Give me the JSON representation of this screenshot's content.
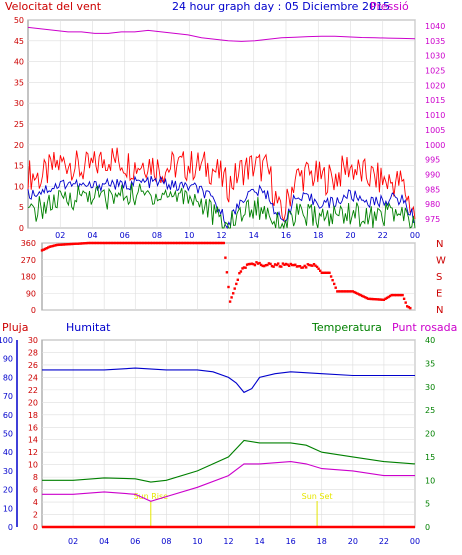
{
  "chart_data": [
    {
      "type": "line",
      "title": "24 hour graph day : 05 Diciembre 2015",
      "left_axis_label": "Velocitat del vent",
      "right_axis_label": "Pressió",
      "x_tick_labels": [
        "02",
        "04",
        "06",
        "08",
        "10",
        "12",
        "14",
        "16",
        "18",
        "20",
        "22",
        "00"
      ],
      "y_left_ticks": [
        0,
        5,
        10,
        15,
        20,
        25,
        30,
        35,
        40,
        45,
        50
      ],
      "y_left_range": [
        0,
        50
      ],
      "y_right_ticks": [
        975,
        980,
        985,
        990,
        995,
        1000,
        1005,
        1010,
        1015,
        1020,
        1025,
        1030,
        1035,
        1040
      ],
      "y_right_range": [
        972,
        1042
      ],
      "grid": true,
      "series": [
        {
          "role": "wind_gust",
          "color": "#ff0000",
          "values": [
            13,
            12,
            15,
            16,
            14,
            15,
            17,
            16,
            15,
            16,
            14,
            15,
            15,
            15,
            14,
            10,
            14,
            15,
            14,
            2,
            12,
            13,
            12,
            12,
            15,
            13,
            12,
            11,
            11,
            3
          ]
        },
        {
          "role": "wind_avg",
          "color": "#0000cc",
          "values": [
            8,
            9,
            10,
            11,
            10,
            10,
            11,
            10,
            11,
            11,
            11,
            10,
            10,
            9,
            6,
            1,
            7,
            9,
            8,
            1,
            7,
            7,
            6,
            6,
            8,
            7,
            6,
            7,
            7,
            2
          ]
        },
        {
          "role": "wind_min",
          "color": "#008000",
          "values": [
            3,
            5,
            6,
            7,
            8,
            8,
            7,
            8,
            8,
            8,
            8,
            8,
            8,
            6,
            3,
            0,
            4,
            5,
            4,
            0,
            3,
            3,
            2,
            3,
            4,
            3,
            2,
            4,
            3,
            0
          ]
        },
        {
          "role": "pressure",
          "color": "#cc00cc",
          "values": [
            1039.5,
            1039,
            1038.5,
            1038,
            1038,
            1037.5,
            1037.5,
            1038,
            1038,
            1038.5,
            1038,
            1037.5,
            1037,
            1036,
            1035.5,
            1035,
            1034.8,
            1035,
            1035.5,
            1036,
            1036.2,
            1036.4,
            1036.5,
            1036.5,
            1036.3,
            1036.1,
            1036,
            1035.9,
            1035.8,
            1035.7
          ]
        }
      ]
    },
    {
      "type": "scatter",
      "right_axis_labels": [
        "N",
        "W",
        "S",
        "E",
        "N"
      ],
      "y_ticks": [
        0,
        90,
        180,
        270,
        360
      ],
      "y_range": [
        0,
        360
      ],
      "x_tick_labels": [
        "02",
        "04",
        "06",
        "08",
        "10",
        "12",
        "14",
        "16",
        "18",
        "20",
        "22",
        "00"
      ],
      "series": [
        {
          "role": "wind_direction",
          "color": "#ff0000",
          "points": [
            [
              0,
              320
            ],
            [
              0.5,
              340
            ],
            [
              1,
              350
            ],
            [
              2,
              355
            ],
            [
              3,
              360
            ],
            [
              4,
              360
            ],
            [
              6,
              360
            ],
            [
              8,
              360
            ],
            [
              10,
              360
            ],
            [
              11.7,
              360
            ],
            [
              12.1,
              45
            ],
            [
              12.3,
              90
            ],
            [
              12.5,
              140
            ],
            [
              12.7,
              200
            ],
            [
              13,
              230
            ],
            [
              13.5,
              250
            ],
            [
              14,
              245
            ],
            [
              15,
              240
            ],
            [
              16,
              240
            ],
            [
              17,
              235
            ],
            [
              17.5,
              240
            ],
            [
              18,
              200
            ],
            [
              18.5,
              200
            ],
            [
              19,
              100
            ],
            [
              20,
              100
            ],
            [
              21,
              60
            ],
            [
              22,
              55
            ],
            [
              22.5,
              80
            ],
            [
              23.2,
              80
            ],
            [
              23.5,
              20
            ],
            [
              23.8,
              5
            ]
          ]
        }
      ]
    },
    {
      "type": "line",
      "legend": [
        "Pluja",
        "Humitat",
        "Temperatura",
        "Punt rosada"
      ],
      "y_axis_pluja": [
        0,
        10,
        20,
        30,
        40,
        50,
        60,
        70,
        80,
        90,
        100
      ],
      "y_axis_humitat": [
        0,
        2,
        4,
        6,
        8,
        10,
        12,
        14,
        16,
        18,
        20,
        22,
        24,
        26,
        28,
        30
      ],
      "y_axis_temp": [
        0,
        5,
        10,
        15,
        20,
        25,
        30,
        35,
        40
      ],
      "x_tick_labels": [
        "02",
        "04",
        "06",
        "08",
        "10",
        "12",
        "14",
        "16",
        "18",
        "20",
        "22",
        "00"
      ],
      "annotations": [
        {
          "label": "Sun Rise",
          "x_hour": 7.0
        },
        {
          "label": "Sun Set",
          "x_hour": 17.7
        }
      ],
      "series": [
        {
          "name": "Pluja",
          "color": "#ff0000",
          "scale": "pluja",
          "points": [
            [
              0,
              0
            ],
            [
              24,
              0
            ]
          ]
        },
        {
          "name": "Humitat",
          "color": "#0000cc",
          "scale": "pluja",
          "points": [
            [
              0,
              84
            ],
            [
              2,
              84
            ],
            [
              4,
              84
            ],
            [
              6,
              85
            ],
            [
              8,
              84
            ],
            [
              10,
              84
            ],
            [
              11,
              83
            ],
            [
              12,
              80
            ],
            [
              12.5,
              77
            ],
            [
              13,
              72
            ],
            [
              13.5,
              74
            ],
            [
              14,
              80
            ],
            [
              15,
              82
            ],
            [
              16,
              83
            ],
            [
              18,
              82
            ],
            [
              20,
              81
            ],
            [
              22,
              81
            ],
            [
              24,
              81
            ]
          ]
        },
        {
          "name": "Temperatura",
          "color": "#008000",
          "scale": "temp",
          "points": [
            [
              0,
              10
            ],
            [
              2,
              10
            ],
            [
              4,
              10.5
            ],
            [
              6,
              10.3
            ],
            [
              7,
              9.6
            ],
            [
              8,
              10
            ],
            [
              10,
              12
            ],
            [
              12,
              15
            ],
            [
              13,
              18.5
            ],
            [
              14,
              18
            ],
            [
              15,
              18
            ],
            [
              16,
              18
            ],
            [
              17,
              17.5
            ],
            [
              18,
              16
            ],
            [
              20,
              15
            ],
            [
              22,
              14
            ],
            [
              24,
              13.5
            ]
          ]
        },
        {
          "name": "Punt rosada",
          "color": "#cc00cc",
          "scale": "temp",
          "points": [
            [
              0,
              7
            ],
            [
              2,
              7
            ],
            [
              4,
              7.5
            ],
            [
              6,
              7
            ],
            [
              7,
              5.5
            ],
            [
              8,
              6.5
            ],
            [
              10,
              8.5
            ],
            [
              12,
              11
            ],
            [
              13,
              13.5
            ],
            [
              14,
              13.5
            ],
            [
              16,
              14
            ],
            [
              17,
              13.5
            ],
            [
              18,
              12.5
            ],
            [
              20,
              12
            ],
            [
              22,
              11
            ],
            [
              24,
              11
            ]
          ]
        }
      ]
    }
  ]
}
